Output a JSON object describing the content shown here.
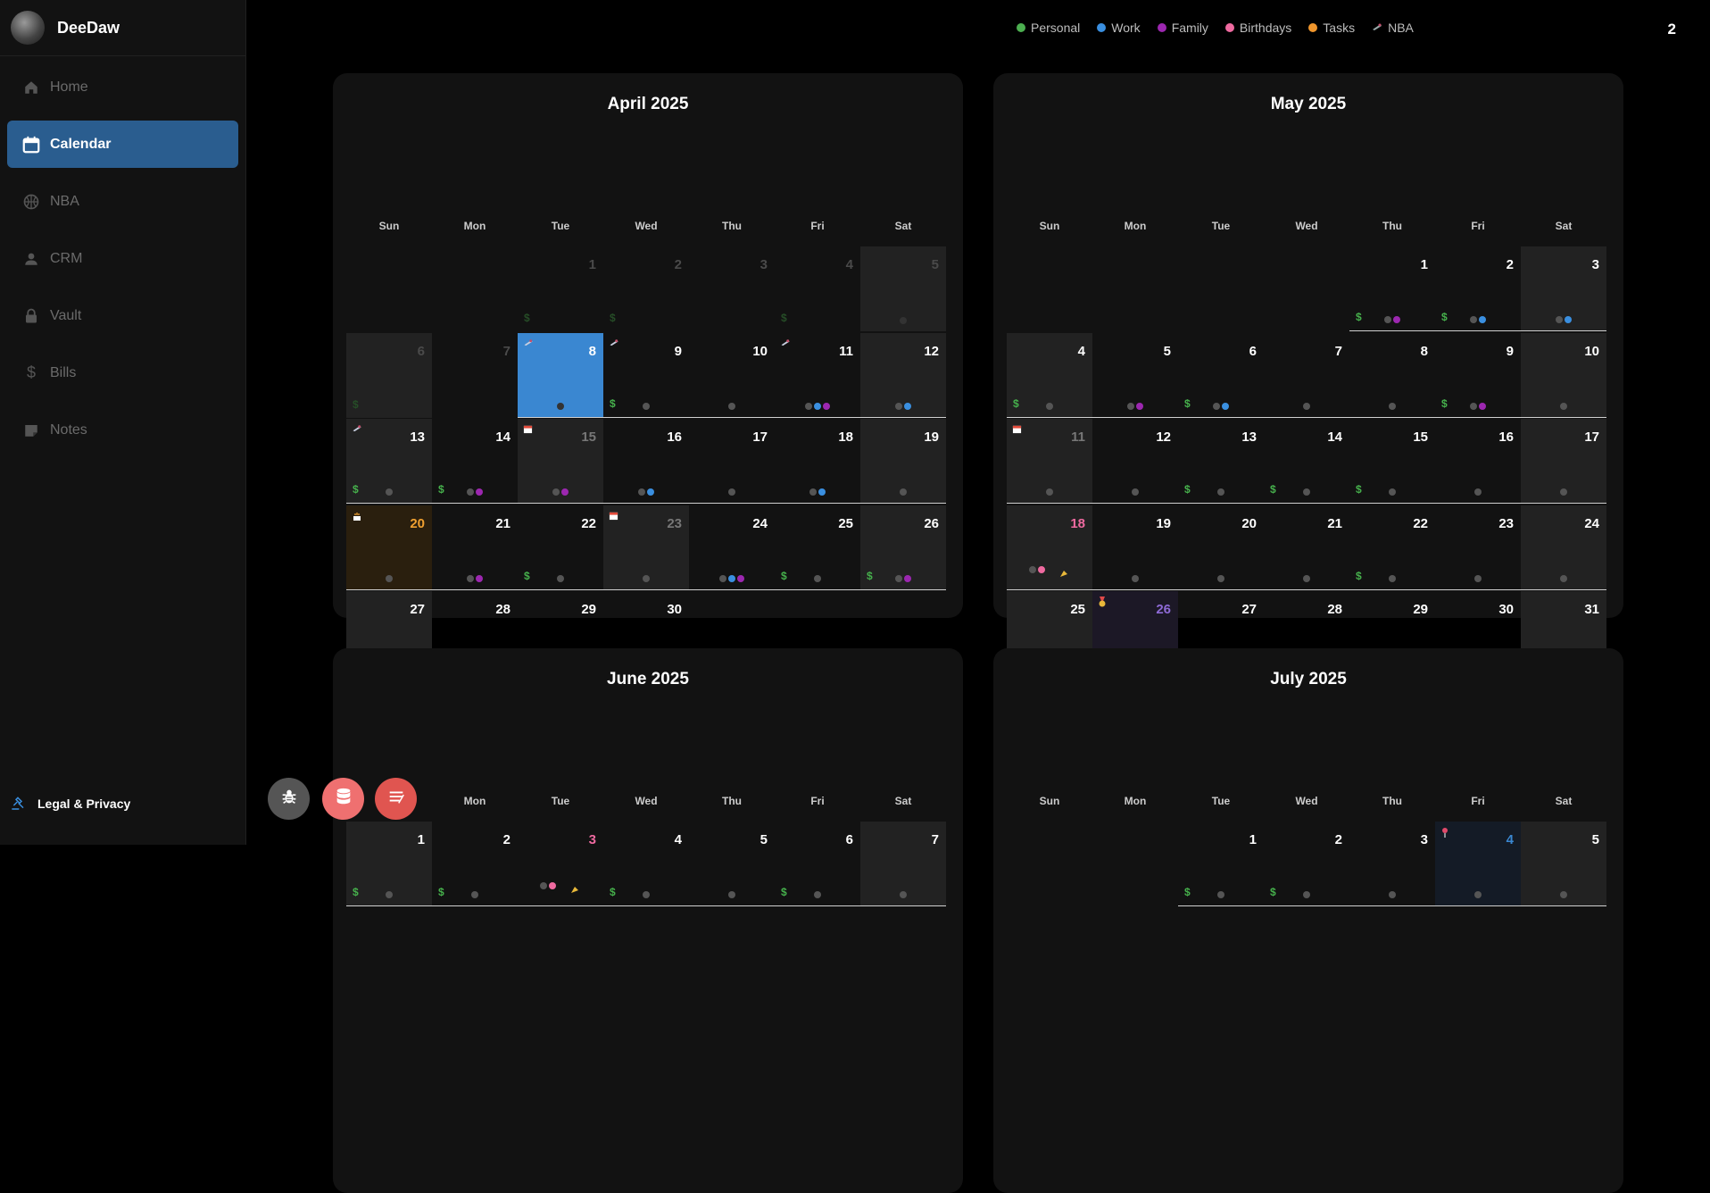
{
  "app": {
    "name": "DeeDaw"
  },
  "sidebar": {
    "items": [
      {
        "label": "Home",
        "icon": "home-icon"
      },
      {
        "label": "Calendar",
        "icon": "calendar-icon"
      },
      {
        "label": "NBA",
        "icon": "basketball-icon"
      },
      {
        "label": "CRM",
        "icon": "person-icon"
      },
      {
        "label": "Vault",
        "icon": "lock-icon"
      },
      {
        "label": "Bills",
        "icon": "dollar-icon"
      },
      {
        "label": "Notes",
        "icon": "note-icon"
      }
    ],
    "legal": "Legal & Privacy"
  },
  "legend": [
    {
      "label": "Personal",
      "color": "#4caf50"
    },
    {
      "label": "Work",
      "color": "#3a8fe0"
    },
    {
      "label": "Family",
      "color": "#9c27b0"
    },
    {
      "label": "Birthdays",
      "color": "#ef6aa0"
    },
    {
      "label": "Tasks",
      "color": "#f0962c"
    },
    {
      "label": "NBA",
      "color": "#c44d6a"
    }
  ],
  "counter": "2",
  "weekdays": [
    "Sun",
    "Mon",
    "Tue",
    "Wed",
    "Thu",
    "Fri",
    "Sat"
  ],
  "colors": {
    "grey": "#555555",
    "purple": "#9c27b0",
    "blue": "#3a8fe0",
    "pink": "#ef6aa0"
  },
  "months": [
    {
      "title": "April 2025",
      "days": [
        {
          "d": "",
          "empty": true
        },
        {
          "d": "",
          "empty": true
        },
        {
          "d": "1",
          "prev": true,
          "dollar": "dim"
        },
        {
          "d": "2",
          "prev": true,
          "dollar": "dim"
        },
        {
          "d": "3",
          "prev": true
        },
        {
          "d": "4",
          "prev": true,
          "dollar": "dim"
        },
        {
          "d": "5",
          "prev": true,
          "weekend": true,
          "dots": [
            "#333"
          ]
        },
        {
          "d": "6",
          "prev": true,
          "weekend": true,
          "dollar": "dim"
        },
        {
          "d": "7",
          "prev": true
        },
        {
          "d": "8",
          "today": true,
          "icon": "nba",
          "dots": [
            "#333"
          ]
        },
        {
          "d": "9",
          "icon": "nba",
          "dollar": "on",
          "dots": [
            "grey"
          ]
        },
        {
          "d": "10",
          "dots": [
            "grey"
          ]
        },
        {
          "d": "11",
          "icon": "nba",
          "dots": [
            "grey",
            "blue",
            "purple"
          ]
        },
        {
          "d": "12",
          "weekend": true,
          "dots": [
            "grey",
            "blue"
          ]
        },
        {
          "d": "13",
          "weekend": true,
          "icon": "nba",
          "dollar": "on",
          "dots": [
            "grey"
          ]
        },
        {
          "d": "14",
          "dollar": "on",
          "dots": [
            "grey",
            "purple"
          ]
        },
        {
          "d": "15",
          "weekend": true,
          "numstyle": "grey",
          "icon": "cal",
          "dots": [
            "grey",
            "purple"
          ]
        },
        {
          "d": "16",
          "dots": [
            "grey",
            "blue"
          ]
        },
        {
          "d": "17",
          "dots": [
            "grey"
          ]
        },
        {
          "d": "18",
          "dots": [
            "grey",
            "blue"
          ]
        },
        {
          "d": "19",
          "weekend": true,
          "dots": [
            "grey"
          ]
        },
        {
          "d": "20",
          "bday": true,
          "numstyle": "orange",
          "icon": "cake",
          "dots": [
            "grey"
          ]
        },
        {
          "d": "21",
          "dots": [
            "grey",
            "purple"
          ]
        },
        {
          "d": "22",
          "dollar": "on",
          "dots": [
            "grey"
          ]
        },
        {
          "d": "23",
          "weekend": true,
          "numstyle": "grey",
          "icon": "cal",
          "dots": [
            "grey"
          ]
        },
        {
          "d": "24",
          "dots": [
            "grey",
            "blue",
            "purple"
          ]
        },
        {
          "d": "25",
          "dollar": "on",
          "dots": [
            "grey"
          ]
        },
        {
          "d": "26",
          "weekend": true,
          "dollar": "on",
          "dots": [
            "grey",
            "purple"
          ]
        },
        {
          "d": "27",
          "weekend": true,
          "noline": true,
          "dollar": "on",
          "dots": [
            "grey",
            "purple"
          ]
        },
        {
          "d": "28",
          "noline": true,
          "dots": [
            "grey"
          ]
        },
        {
          "d": "29",
          "noline": true,
          "dots": [
            "grey",
            "blue"
          ]
        },
        {
          "d": "30",
          "noline": true,
          "dots": [
            "grey"
          ]
        }
      ]
    },
    {
      "title": "May 2025",
      "days": [
        {
          "d": "",
          "empty": true
        },
        {
          "d": "",
          "empty": true
        },
        {
          "d": "",
          "empty": true
        },
        {
          "d": "",
          "empty": true
        },
        {
          "d": "1",
          "dollar": "on",
          "dots": [
            "grey",
            "purple"
          ]
        },
        {
          "d": "2",
          "dollar": "on",
          "dots": [
            "grey",
            "blue"
          ]
        },
        {
          "d": "3",
          "weekend": true,
          "dots": [
            "grey",
            "blue"
          ]
        },
        {
          "d": "4",
          "weekend": true,
          "dollar": "on",
          "dots": [
            "grey"
          ]
        },
        {
          "d": "5",
          "dots": [
            "grey",
            "purple"
          ]
        },
        {
          "d": "6",
          "dollar": "on",
          "dots": [
            "grey",
            "blue"
          ]
        },
        {
          "d": "7",
          "dots": [
            "grey"
          ]
        },
        {
          "d": "8",
          "dots": [
            "grey"
          ]
        },
        {
          "d": "9",
          "dollar": "on",
          "dots": [
            "grey",
            "purple"
          ]
        },
        {
          "d": "10",
          "weekend": true,
          "dots": [
            "grey"
          ]
        },
        {
          "d": "11",
          "weekend": true,
          "numstyle": "grey",
          "icon": "cal",
          "dots": [
            "grey"
          ]
        },
        {
          "d": "12",
          "dots": [
            "grey"
          ]
        },
        {
          "d": "13",
          "dollar": "on",
          "dots": [
            "grey"
          ]
        },
        {
          "d": "14",
          "dollar": "on",
          "dots": [
            "grey"
          ]
        },
        {
          "d": "15",
          "dollar": "on",
          "dots": [
            "grey"
          ]
        },
        {
          "d": "16",
          "dots": [
            "grey"
          ]
        },
        {
          "d": "17",
          "weekend": true,
          "dots": [
            "grey"
          ]
        },
        {
          "d": "18",
          "weekend": true,
          "numstyle": "pink",
          "dots": [
            "grey",
            "pink"
          ],
          "party": true
        },
        {
          "d": "19",
          "dots": [
            "grey"
          ]
        },
        {
          "d": "20",
          "dots": [
            "grey"
          ]
        },
        {
          "d": "21",
          "dots": [
            "grey"
          ]
        },
        {
          "d": "22",
          "dollar": "on",
          "dots": [
            "grey"
          ]
        },
        {
          "d": "23",
          "dots": [
            "grey"
          ]
        },
        {
          "d": "24",
          "weekend": true,
          "dots": [
            "grey"
          ]
        },
        {
          "d": "25",
          "weekend": true,
          "noline": true,
          "dollar": "on",
          "dots": [
            "grey"
          ]
        },
        {
          "d": "26",
          "purple": true,
          "noline": true,
          "numstyle": "violet",
          "icon": "medal",
          "dots": [
            "grey"
          ]
        },
        {
          "d": "27",
          "noline": true,
          "dollar": "on",
          "dots": [
            "grey"
          ]
        },
        {
          "d": "28",
          "noline": true,
          "dots": [
            "grey"
          ]
        },
        {
          "d": "29",
          "noline": true,
          "dots": [
            "grey"
          ]
        },
        {
          "d": "30",
          "noline": true,
          "dots": [
            "grey"
          ]
        },
        {
          "d": "31",
          "weekend": true,
          "noline": true,
          "dots": [
            "grey"
          ]
        }
      ]
    },
    {
      "title": "June 2025",
      "days": [
        {
          "d": "1",
          "weekend": true,
          "dollar": "on",
          "dots": [
            "grey"
          ]
        },
        {
          "d": "2",
          "dollar": "on",
          "dots": [
            "grey"
          ]
        },
        {
          "d": "3",
          "numstyle": "pink",
          "dots": [
            "grey",
            "pink"
          ],
          "party": true
        },
        {
          "d": "4",
          "dollar": "on",
          "dots": [
            "grey"
          ]
        },
        {
          "d": "5",
          "dots": [
            "grey"
          ]
        },
        {
          "d": "6",
          "dollar": "on",
          "dots": [
            "grey"
          ]
        },
        {
          "d": "7",
          "weekend": true,
          "dots": [
            "grey"
          ]
        }
      ]
    },
    {
      "title": "July 2025",
      "days": [
        {
          "d": "",
          "empty": true
        },
        {
          "d": "",
          "empty": true
        },
        {
          "d": "1",
          "dollar": "on",
          "dots": [
            "grey"
          ]
        },
        {
          "d": "2",
          "dollar": "on",
          "dots": [
            "grey"
          ]
        },
        {
          "d": "3",
          "dots": [
            "grey"
          ]
        },
        {
          "d": "4",
          "navy": true,
          "numstyle": "blue",
          "icon": "pin",
          "dots": [
            "grey"
          ]
        },
        {
          "d": "5",
          "weekend": true,
          "dots": [
            "grey"
          ]
        }
      ]
    }
  ]
}
